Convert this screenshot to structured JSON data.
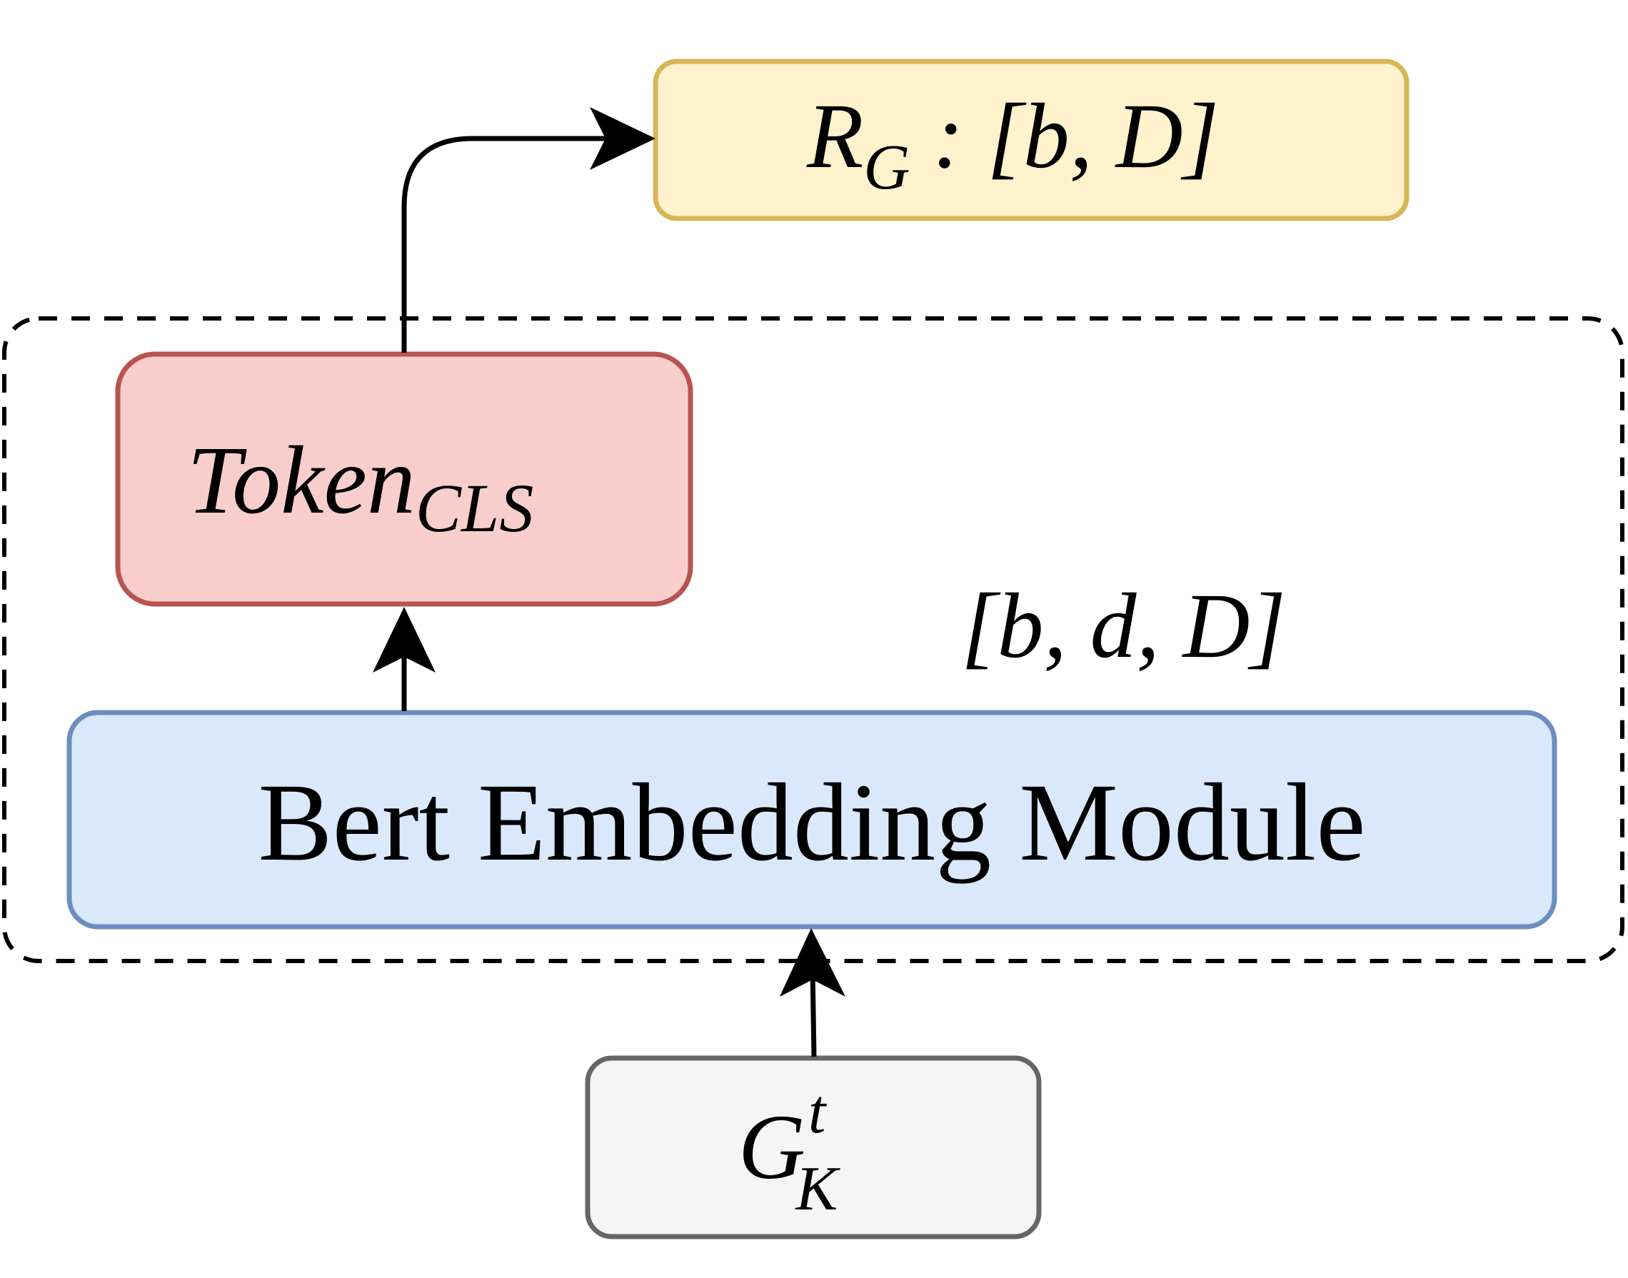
{
  "colors": {
    "output_fill": "#fff2cc",
    "output_stroke": "#d6b656",
    "token_fill": "#f8cecc",
    "token_stroke": "#b85450",
    "bert_fill": "#dae8fc",
    "bert_stroke": "#6c8ebf",
    "input_fill": "#f5f5f5",
    "input_stroke": "#666666",
    "arrow": "#000000",
    "dashed_border": "#000000"
  },
  "output_box": {
    "symbol": "R",
    "subscript": "G",
    "shape": ": [b, D]"
  },
  "token_box": {
    "symbol": "Token",
    "subscript": "CLS"
  },
  "bert_box": {
    "label": "Bert Embedding Module"
  },
  "intermediate_shape": {
    "label": "[b, d, D]"
  },
  "input_box": {
    "symbol": "G",
    "superscript": "t",
    "subscript": "K"
  }
}
